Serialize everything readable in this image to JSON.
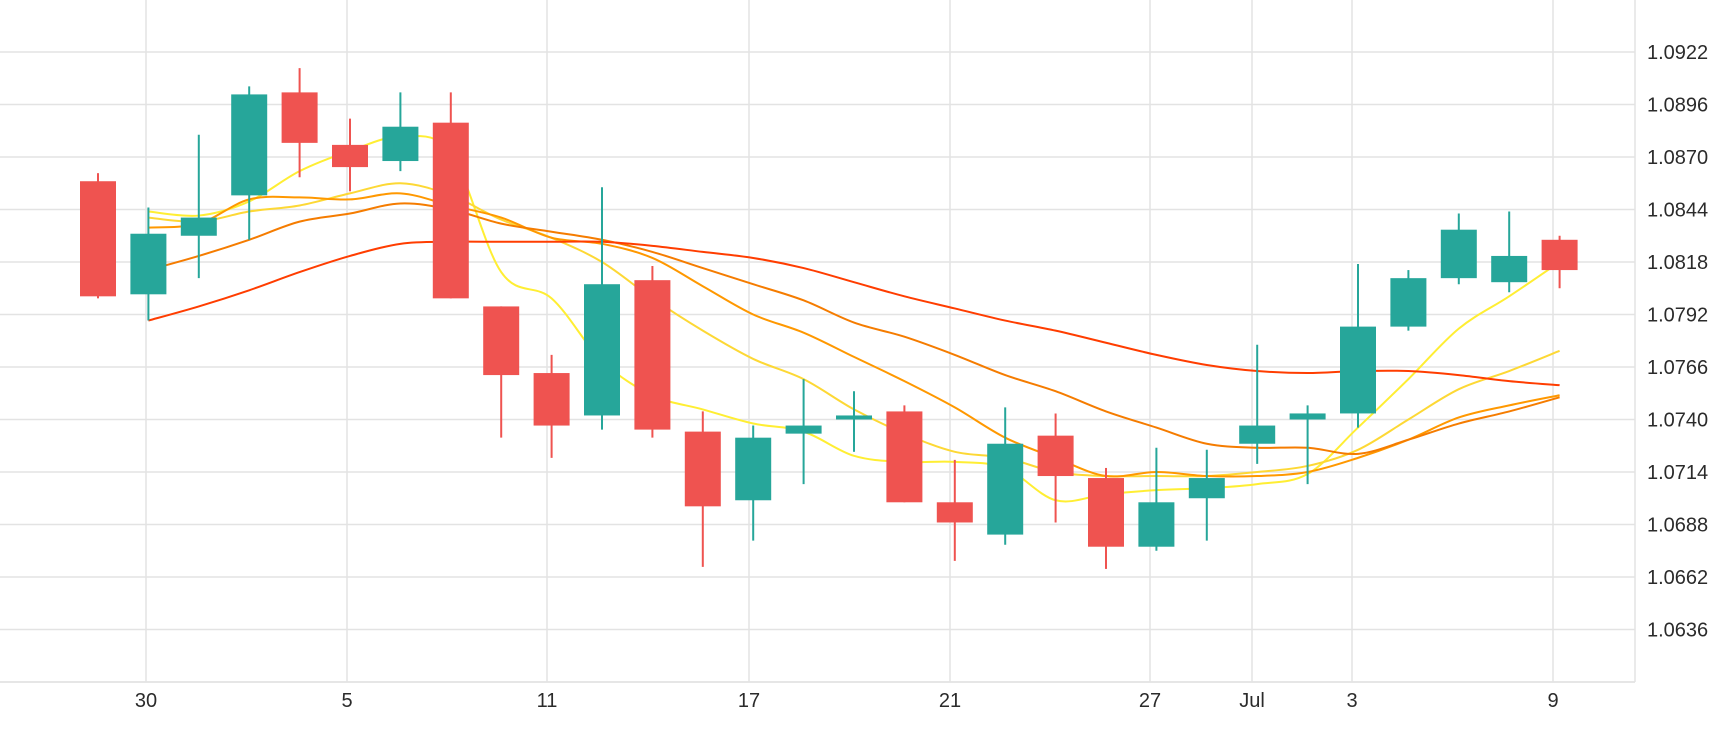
{
  "chart_data": {
    "type": "candlestick",
    "x_tick_labels": [
      "30",
      "5",
      "11",
      "17",
      "21",
      "27",
      "Jul",
      "3",
      "9"
    ],
    "y_tick_labels": [
      "1.0922",
      "1.0896",
      "1.0870",
      "1.0844",
      "1.0818",
      "1.0792",
      "1.0766",
      "1.0740",
      "1.0714",
      "1.0688",
      "1.0662",
      "1.0636"
    ],
    "ylim": [
      1.061,
      1.0942
    ],
    "grid": true,
    "colors": {
      "up": "#26a69a",
      "down": "#ef5350",
      "grid": "#e3e3e3"
    },
    "candles": [
      {
        "o": 1.0858,
        "h": 1.0862,
        "l": 1.08,
        "c": 1.0801
      },
      {
        "o": 1.0802,
        "h": 1.0845,
        "l": 1.0789,
        "c": 1.0832
      },
      {
        "o": 1.0831,
        "h": 1.0881,
        "l": 1.081,
        "c": 1.084
      },
      {
        "o": 1.0851,
        "h": 1.0905,
        "l": 1.0829,
        "c": 1.0901
      },
      {
        "o": 1.0902,
        "h": 1.0914,
        "l": 1.086,
        "c": 1.0877
      },
      {
        "o": 1.0876,
        "h": 1.0889,
        "l": 1.0853,
        "c": 1.0865
      },
      {
        "o": 1.0868,
        "h": 1.0902,
        "l": 1.0863,
        "c": 1.0885
      },
      {
        "o": 1.0887,
        "h": 1.0902,
        "l": 1.08,
        "c": 1.08
      },
      {
        "o": 1.0796,
        "h": 1.0796,
        "l": 1.0731,
        "c": 1.0762
      },
      {
        "o": 1.0763,
        "h": 1.0772,
        "l": 1.0721,
        "c": 1.0737
      },
      {
        "o": 1.0742,
        "h": 1.0855,
        "l": 1.0735,
        "c": 1.0807
      },
      {
        "o": 1.0809,
        "h": 1.0816,
        "l": 1.0731,
        "c": 1.0735
      },
      {
        "o": 1.0734,
        "h": 1.0744,
        "l": 1.0667,
        "c": 1.0697
      },
      {
        "o": 1.07,
        "h": 1.0737,
        "l": 1.068,
        "c": 1.0731
      },
      {
        "o": 1.0733,
        "h": 1.076,
        "l": 1.0708,
        "c": 1.0737
      },
      {
        "o": 1.074,
        "h": 1.0754,
        "l": 1.0724,
        "c": 1.0742
      },
      {
        "o": 1.0744,
        "h": 1.0747,
        "l": 1.0699,
        "c": 1.0699
      },
      {
        "o": 1.0699,
        "h": 1.072,
        "l": 1.067,
        "c": 1.0689
      },
      {
        "o": 1.0683,
        "h": 1.0746,
        "l": 1.0678,
        "c": 1.0728
      },
      {
        "o": 1.0732,
        "h": 1.0743,
        "l": 1.0689,
        "c": 1.0712
      },
      {
        "o": 1.0711,
        "h": 1.0716,
        "l": 1.0666,
        "c": 1.0677
      },
      {
        "o": 1.0677,
        "h": 1.0726,
        "l": 1.0675,
        "c": 1.0699
      },
      {
        "o": 1.0701,
        "h": 1.0725,
        "l": 1.068,
        "c": 1.0711
      },
      {
        "o": 1.0728,
        "h": 1.0777,
        "l": 1.0718,
        "c": 1.0737
      },
      {
        "o": 1.074,
        "h": 1.0747,
        "l": 1.0708,
        "c": 1.0743
      },
      {
        "o": 1.0743,
        "h": 1.0817,
        "l": 1.0736,
        "c": 1.0786
      },
      {
        "o": 1.0786,
        "h": 1.0814,
        "l": 1.0784,
        "c": 1.081
      },
      {
        "o": 1.081,
        "h": 1.0842,
        "l": 1.0807,
        "c": 1.0834
      },
      {
        "o": 1.0808,
        "h": 1.0843,
        "l": 1.0803,
        "c": 1.0821
      },
      {
        "o": 1.0829,
        "h": 1.0831,
        "l": 1.0805,
        "c": 1.0814
      }
    ],
    "moving_averages": [
      {
        "color": "#ffee33",
        "period": 3,
        "values": [
          null,
          1.0843,
          1.0841,
          1.0848,
          1.0863,
          1.0873,
          1.088,
          1.0872,
          1.0813,
          1.08,
          1.0769,
          1.0752,
          1.0745,
          1.0738,
          1.0734,
          1.0722,
          1.0719,
          1.0719,
          1.0716,
          1.07,
          1.0703,
          1.0705,
          1.0706,
          1.0708,
          1.0713,
          1.0736,
          1.076,
          1.0785,
          1.0801,
          1.0818
        ]
      },
      {
        "color": "#fdd835",
        "period": 5,
        "values": [
          null,
          1.084,
          1.0838,
          1.0843,
          1.0846,
          1.0852,
          1.0857,
          1.0851,
          1.0839,
          1.083,
          1.0818,
          1.08,
          1.0784,
          1.077,
          1.076,
          1.0745,
          1.0733,
          1.0724,
          1.0721,
          1.0714,
          1.0712,
          1.0712,
          1.0712,
          1.0714,
          1.0717,
          1.0725,
          1.074,
          1.0755,
          1.0764,
          1.0774
        ]
      },
      {
        "color": "#ff9800",
        "period": 8,
        "values": [
          null,
          1.0835,
          1.0837,
          1.0849,
          1.085,
          1.0849,
          1.0852,
          1.0846,
          1.084,
          1.083,
          1.0827,
          1.082,
          1.0806,
          1.0792,
          1.0783,
          1.0771,
          1.0759,
          1.0746,
          1.0731,
          1.0721,
          1.0712,
          1.0714,
          1.0712,
          1.0712,
          1.0714,
          1.0721,
          1.073,
          1.0741,
          1.0747,
          1.0752
        ]
      },
      {
        "color": "#f57c00",
        "period": 13,
        "values": [
          null,
          1.0814,
          1.0821,
          1.0829,
          1.0838,
          1.0842,
          1.0847,
          1.0844,
          1.0837,
          1.0833,
          1.0829,
          1.0823,
          1.0815,
          1.0807,
          1.0799,
          1.0788,
          1.0781,
          1.0772,
          1.0762,
          1.0754,
          1.0744,
          1.0736,
          1.0728,
          1.0726,
          1.0726,
          1.0723,
          1.073,
          1.0738,
          1.0744,
          1.0751
        ]
      },
      {
        "color": "#ff3d00",
        "period": 21,
        "values": [
          null,
          1.0789,
          1.0796,
          1.0804,
          1.0813,
          1.0821,
          1.0827,
          1.0828,
          1.0828,
          1.0828,
          1.0828,
          1.0826,
          1.0823,
          1.082,
          1.0815,
          1.0808,
          1.0801,
          1.0795,
          1.0789,
          1.0784,
          1.0778,
          1.0772,
          1.0767,
          1.0764,
          1.0763,
          1.0764,
          1.0764,
          1.0762,
          1.0759,
          1.0757
        ]
      }
    ]
  }
}
